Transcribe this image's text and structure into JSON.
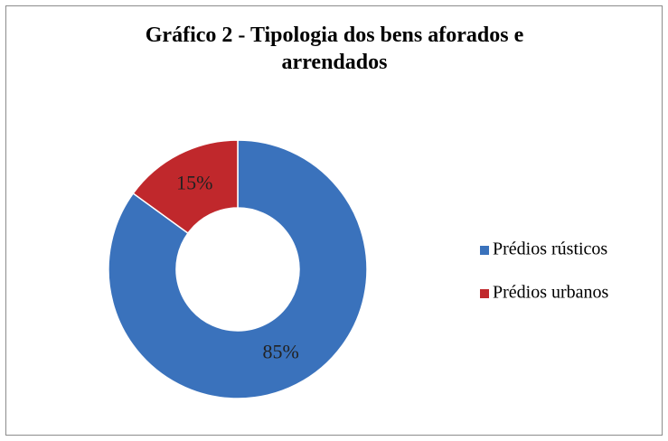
{
  "chart_data": {
    "type": "donut",
    "title": "Gráfico 2 - Tipologia dos bens aforados e arrendados",
    "categories": [
      "Prédios rústicos",
      "Prédios urbanos"
    ],
    "values": [
      85,
      15
    ],
    "value_labels": [
      "85%",
      "15%"
    ],
    "colors": [
      "#3a72bc",
      "#c0282c"
    ],
    "legend": "right"
  }
}
